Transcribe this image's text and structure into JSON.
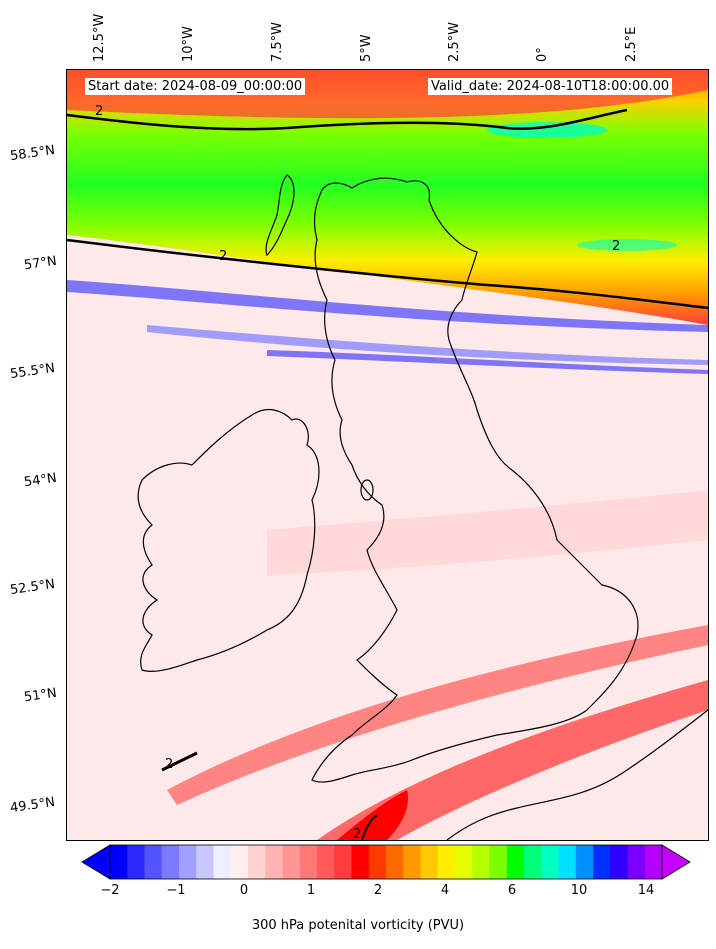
{
  "map": {
    "start_date": "Start date: 2024-08-09_00:00:00",
    "valid_date": "Valid_date: 2024-08-10T18:00:00.00",
    "lon_labels": [
      "12.5°W",
      "10°W",
      "7.5°W",
      "5°W",
      "2.5°W",
      "0°",
      "2.5°E"
    ],
    "lat_labels": [
      "58.5°N",
      "57°N",
      "55.5°N",
      "54°N",
      "52.5°N",
      "51°N",
      "49.5°N"
    ],
    "contour_label": "2"
  },
  "colorbar": {
    "ticks": [
      "−2",
      "−1",
      "0",
      "1",
      "2",
      "4",
      "6",
      "10",
      "14"
    ],
    "label": "300 hPa potenital vorticity (PVU)",
    "colors": [
      "#0000ff",
      "#2a2aff",
      "#5555ff",
      "#7a7aff",
      "#a0a0ff",
      "#c8c8ff",
      "#eeeeff",
      "#ffeeee",
      "#ffd2d2",
      "#ffb4b4",
      "#ff9696",
      "#ff7878",
      "#ff5a5a",
      "#ff3c3c",
      "#ff0000",
      "#ff3a00",
      "#ff6a00",
      "#ff9a00",
      "#ffc800",
      "#ffee00",
      "#e6ff00",
      "#b4ff00",
      "#7aff00",
      "#00ff00",
      "#00ff78",
      "#00ffc0",
      "#00e0ff",
      "#0090ff",
      "#0030ff",
      "#3000ff",
      "#7a00ff",
      "#b400ff"
    ]
  }
}
